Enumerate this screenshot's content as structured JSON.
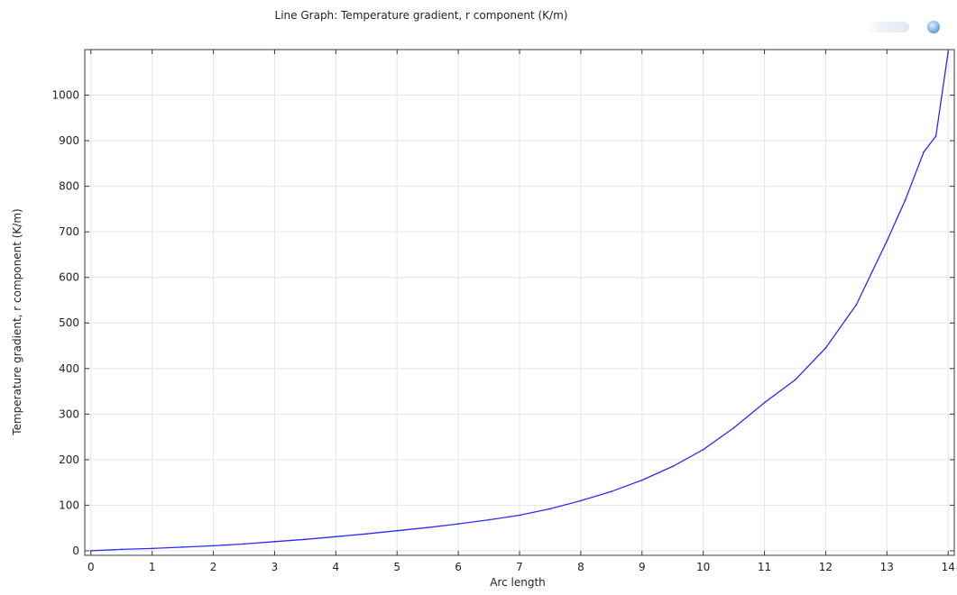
{
  "chart_data": {
    "type": "line",
    "title": "Line Graph: Temperature gradient, r component (K/m)",
    "xlabel": "Arc length",
    "ylabel": "Temperature gradient, r component (K/m)",
    "xlim": [
      -0.1,
      14.1
    ],
    "ylim": [
      -10,
      1100
    ],
    "x_ticks": [
      0,
      1,
      2,
      3,
      4,
      5,
      6,
      7,
      8,
      9,
      10,
      11,
      12,
      13,
      14
    ],
    "y_ticks": [
      0,
      100,
      200,
      300,
      400,
      500,
      600,
      700,
      800,
      900,
      1000
    ],
    "grid": true,
    "legend": "none",
    "colors": {
      "line": "#2a2aff",
      "axis": "#3a3a3a",
      "grid": "#e6e6e6"
    },
    "series": [
      {
        "x": [
          0,
          0.5,
          1,
          1.5,
          2,
          2.5,
          3,
          3.5,
          4,
          4.5,
          5,
          5.5,
          6,
          6.5,
          7,
          7.5,
          8,
          8.5,
          9,
          9.5,
          10,
          10.5,
          11,
          11.5,
          12,
          12.5,
          13,
          13.3,
          13.6,
          13.8,
          14
        ],
        "y": [
          0,
          3,
          5,
          8,
          11,
          15,
          20,
          25,
          31,
          37,
          44,
          51,
          59,
          68,
          78,
          92,
          110,
          130,
          155,
          185,
          222,
          270,
          325,
          375,
          445,
          540,
          680,
          770,
          875,
          910,
          1095
        ]
      }
    ]
  }
}
